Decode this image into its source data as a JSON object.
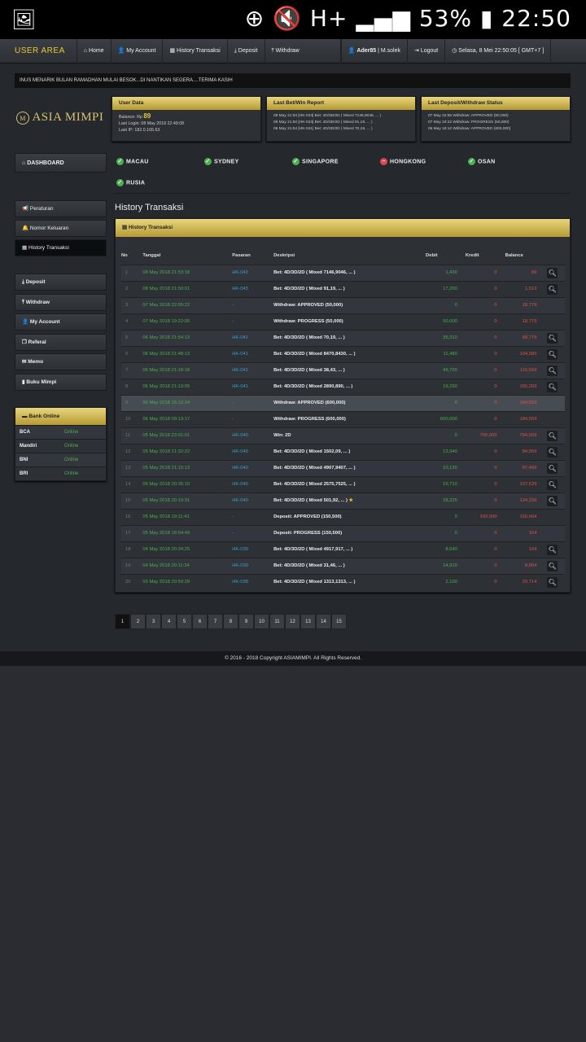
{
  "statusbar": {
    "battery": "53%",
    "time": "22:50"
  },
  "nav": {
    "brand": "USER AREA",
    "items": [
      "Home",
      "My Account",
      "History Transaksi",
      "Deposit",
      "Withdraw"
    ],
    "user": "Ader85",
    "user_sub": "M.solek",
    "logout": "Logout",
    "datetime": "Selasa, 8 Mei 22:50:05 [ GMT+7 ]"
  },
  "marquee": "INUS MENARIK BULAN RAMADHAN MULAI BESOK...DI NANTIKAN SEGERA....TERIMA KASIH",
  "logo": "ASIA MIMPI",
  "user_data": {
    "title": "User Data",
    "balance_label": "Balance: Rp",
    "balance": "89",
    "last_login": "Last Login: 08 May 2018 22:49:08",
    "last_ip": "Last IP: 182.0.165.63"
  },
  "bet_report": {
    "title": "Last Bet/Win Report",
    "lines": [
      "08 May 21:53 [HK-043] Bet: 4D/3D/2D ( Mixed 7146,9046, ... )",
      "08 May 21:50 [HK-043] Bet: 4D/3D/2D ( Mixed 91,19, ... )",
      "06 May 21:54 [HK-041] Bet: 4D/3D/2D ( Mixed 70,19, ... )"
    ]
  },
  "dw_status": {
    "title": "Last Deposit/Withdraw Status",
    "lines": [
      "07 May 22:55 Withdraw: APPROVED (50,000)",
      "07 May 19:22 Withdraw: PROGRESS (50,000)",
      "06 May 16:12 Withdraw: APPROVED (600,000)"
    ]
  },
  "dashboard": "DASHBOARD",
  "markets": [
    {
      "name": "MACAU",
      "status": "ok"
    },
    {
      "name": "SYDNEY",
      "status": "ok"
    },
    {
      "name": "SINGAPORE",
      "status": "ok"
    },
    {
      "name": "HONGKONG",
      "status": "closed"
    },
    {
      "name": "OSAN",
      "status": "ok"
    },
    {
      "name": "RUSIA",
      "status": "ok"
    }
  ],
  "sidebar": {
    "group1": [
      "Peraturan",
      "Nomor Keluaran",
      "History Transaksi"
    ],
    "group2": [
      "Deposit",
      "Withdraw",
      "My Account",
      "Referal",
      "Memo",
      "Buku Mimpi"
    ]
  },
  "bank": {
    "title": "Bank Online",
    "rows": [
      [
        "BCA",
        "Online"
      ],
      [
        "Mandiri",
        "Online"
      ],
      [
        "BNI",
        "Online"
      ],
      [
        "BRI",
        "Online"
      ]
    ]
  },
  "main": {
    "title": "History Transaksi",
    "panel_title": "History Transaksi",
    "columns": [
      "No",
      "Tanggal",
      "Pasaran",
      "Deskripsi",
      "Debit",
      "Kredit",
      "Balance"
    ],
    "rows": [
      [
        "1",
        "08 May 2018 21:53:18",
        "HK-043",
        "Bet: 4D/3D/2D ( Mixed 7146,9046, ... )",
        "1,430",
        "0",
        "89",
        true
      ],
      [
        "2",
        "08 May 2018 21:50:01",
        "HK-043",
        "Bet: 4D/3D/2D ( Mixed 91,19, ... )",
        "17,260",
        "0",
        "1,519",
        true
      ],
      [
        "3",
        "07 May 2018 22:55:22",
        "-",
        "Withdraw: APPROVED (50,000)",
        "0",
        "0",
        "18,779",
        false
      ],
      [
        "4",
        "07 May 2018 19:22:05",
        "-",
        "Withdraw: PROGRESS (50,000)",
        "50,000",
        "0",
        "18,779",
        false
      ],
      [
        "5",
        "06 May 2018 21:54:13",
        "HK-041",
        "Bet: 4D/3D/2D ( Mixed 70,19, ... )",
        "35,310",
        "0",
        "68,779",
        true
      ],
      [
        "6",
        "06 May 2018 21:48:13",
        "HK-041",
        "Bet: 4D/3D/2D ( Mixed 8470,8430, ... )",
        "11,480",
        "0",
        "104,089",
        true
      ],
      [
        "7",
        "06 May 2018 21:18:18",
        "HK-041",
        "Bet: 4D/3D/2D ( Mixed 38,43, ... )",
        "49,700",
        "0",
        "115,569",
        true
      ],
      [
        "8",
        "06 May 2018 21:13:05",
        "HK-041",
        "Bet: 4D/3D/2D ( Mixed 2890,890, ... )",
        "19,290",
        "0",
        "165,269",
        true
      ],
      [
        "9",
        "06 May 2018 16:12:24",
        "-",
        "Withdraw: APPROVED (600,000)",
        "0",
        "0",
        "184,559",
        false
      ],
      [
        "10",
        "06 May 2018 09:13:17",
        "-",
        "Withdraw: PROGRESS (600,000)",
        "600,000",
        "0",
        "184,559",
        false
      ],
      [
        "11",
        "05 May 2018 23:01:01",
        "HK-040",
        "Win: 2D",
        "0",
        "700,000",
        "784,559",
        true
      ],
      [
        "12",
        "05 May 2018 21:32:22",
        "HK-040",
        "Bet: 4D/3D/2D ( Mixed 1502,09, ... )",
        "12,940",
        "0",
        "84,559",
        true
      ],
      [
        "13",
        "05 May 2018 21:15:13",
        "HK-040",
        "Bet: 4D/3D/2D ( Mixed 4907,9407, ... )",
        "10,130",
        "0",
        "97,499",
        true
      ],
      [
        "14",
        "05 May 2018 20:35:10",
        "HK-040",
        "Bet: 4D/3D/2D ( Mixed 2575,7525, ... )",
        "16,710",
        "0",
        "107,629",
        true
      ],
      [
        "15",
        "05 May 2018 20:19:31",
        "HK-040",
        "Bet: 4D/3D/2D ( Mixed 501,92, ... )",
        "28,325",
        "0",
        "124,339",
        true
      ],
      [
        "16",
        "05 May 2018 19:11:41",
        "-",
        "Deposit: APPROVED (150,500)",
        "0",
        "150,500",
        "150,664",
        false
      ],
      [
        "17",
        "05 May 2018 18:54:49",
        "-",
        "Deposit: PROGRESS (150,500)",
        "0",
        "0",
        "164",
        false
      ],
      [
        "18",
        "04 May 2018 20:34:25",
        "HK-039",
        "Bet: 4D/3D/2D ( Mixed 4917,917, ... )",
        "8,640",
        "0",
        "164",
        true
      ],
      [
        "19",
        "04 May 2018 20:11:34",
        "HK-039",
        "Bet: 4D/3D/2D ( Mixed 31,46, ... )",
        "14,910",
        "0",
        "8,804",
        true
      ],
      [
        "20",
        "03 May 2018 20:50:29",
        "HK-038",
        "Bet: 4D/3D/2D ( Mixed 1313,1313, ... )",
        "2,100",
        "0",
        "23,714",
        true
      ]
    ],
    "starred_row": "15",
    "highlight_row": "9"
  },
  "pagination": [
    "1",
    "2",
    "3",
    "4",
    "5",
    "6",
    "7",
    "8",
    "9",
    "10",
    "11",
    "12",
    "13",
    "14",
    "15"
  ],
  "current_page": "1",
  "footer": "© 2016 - 2018 Copyright ASIAMIMPI. All Rights Reserved."
}
